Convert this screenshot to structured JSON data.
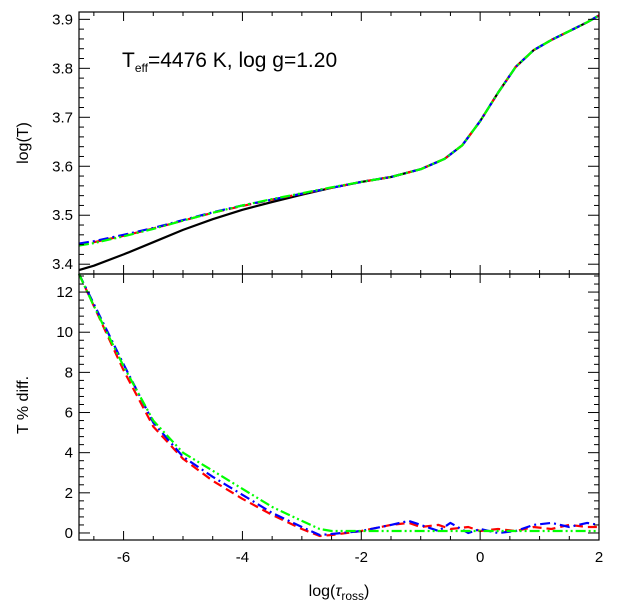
{
  "chart_data": [
    {
      "type": "line",
      "panel": "top",
      "annotation": {
        "prefix": "T",
        "sub": "eff",
        "text": "=4476 K, log g=1.20"
      },
      "ylabel": "log(T)",
      "xlabel": "",
      "xlim": [
        -6.75,
        2.0
      ],
      "ylim": [
        3.38,
        3.915
      ],
      "xticks": [
        -6,
        -4,
        -2,
        0,
        2
      ],
      "yticks": [
        3.4,
        3.5,
        3.6,
        3.7,
        3.8,
        3.9
      ],
      "ytick_labels": [
        "3.4",
        "3.5",
        "3.6",
        "3.7",
        "3.8",
        "3.9"
      ],
      "series": [
        {
          "color": "#000000",
          "style": "solid",
          "x": [
            -6.75,
            -6.5,
            -6.0,
            -5.5,
            -5.0,
            -4.5,
            -4.0,
            -3.5,
            -3.0,
            -2.5,
            -2.0,
            -1.5,
            -1.0,
            -0.6,
            -0.3,
            0.0,
            0.3,
            0.6,
            0.9,
            1.2,
            1.5,
            1.8,
            2.0
          ],
          "y": [
            3.388,
            3.397,
            3.42,
            3.445,
            3.47,
            3.492,
            3.511,
            3.527,
            3.542,
            3.556,
            3.568,
            3.578,
            3.594,
            3.615,
            3.643,
            3.692,
            3.75,
            3.803,
            3.837,
            3.858,
            3.876,
            3.894,
            3.908
          ]
        },
        {
          "color": "#ff0000",
          "style": "dashed",
          "x": [
            -6.75,
            -6.5,
            -6.0,
            -5.5,
            -5.0,
            -4.5,
            -4.0,
            -3.5,
            -3.0,
            -2.5,
            -2.0,
            -1.5,
            -1.0,
            -0.6,
            -0.3,
            0.0,
            0.3,
            0.6,
            0.9,
            1.2,
            1.5,
            1.8,
            2.0
          ],
          "y": [
            3.44,
            3.445,
            3.458,
            3.473,
            3.489,
            3.505,
            3.519,
            3.532,
            3.544,
            3.556,
            3.568,
            3.578,
            3.594,
            3.615,
            3.643,
            3.692,
            3.75,
            3.803,
            3.837,
            3.858,
            3.876,
            3.894,
            3.908
          ]
        },
        {
          "color": "#0000ff",
          "style": "dashdot",
          "x": [
            -6.75,
            -6.5,
            -6.0,
            -5.5,
            -5.0,
            -4.5,
            -4.0,
            -3.5,
            -3.0,
            -2.5,
            -2.0,
            -1.5,
            -1.0,
            -0.6,
            -0.3,
            0.0,
            0.3,
            0.6,
            0.9,
            1.2,
            1.5,
            1.8,
            2.0
          ],
          "y": [
            3.442,
            3.447,
            3.46,
            3.474,
            3.49,
            3.506,
            3.52,
            3.532,
            3.544,
            3.556,
            3.568,
            3.578,
            3.594,
            3.615,
            3.643,
            3.692,
            3.75,
            3.803,
            3.837,
            3.858,
            3.876,
            3.894,
            3.908
          ]
        },
        {
          "color": "#00ff00",
          "style": "dashdotdot",
          "x": [
            -6.75,
            -6.5,
            -6.0,
            -5.5,
            -5.0,
            -4.5,
            -4.0,
            -3.5,
            -3.0,
            -2.5,
            -2.0,
            -1.5,
            -1.0,
            -0.6,
            -0.3,
            0.0,
            0.3,
            0.6,
            0.9,
            1.2,
            1.5,
            1.8,
            2.0
          ],
          "y": [
            3.438,
            3.443,
            3.457,
            3.472,
            3.489,
            3.505,
            3.52,
            3.533,
            3.545,
            3.557,
            3.568,
            3.578,
            3.594,
            3.615,
            3.643,
            3.692,
            3.75,
            3.803,
            3.837,
            3.858,
            3.876,
            3.894,
            3.908
          ]
        }
      ]
    },
    {
      "type": "line",
      "panel": "bottom",
      "ylabel": "T % diff.",
      "xlabel_main": "log(",
      "xlabel_symbol": "τ",
      "xlabel_sub": "ross",
      "xlabel_close": ")",
      "xlim": [
        -6.75,
        2.0
      ],
      "ylim": [
        -0.35,
        12.9
      ],
      "xticks": [
        -6,
        -4,
        -2,
        0,
        2
      ],
      "xtick_labels": [
        "-6",
        "-4",
        "-2",
        "0",
        "2"
      ],
      "yticks": [
        0,
        2,
        4,
        6,
        8,
        10,
        12
      ],
      "ytick_labels": [
        "0",
        "2",
        "4",
        "6",
        "8",
        "10",
        "12"
      ],
      "series": [
        {
          "color": "#ff0000",
          "style": "dashed",
          "x": [
            -6.75,
            -6.5,
            -6.0,
            -5.5,
            -5.0,
            -4.5,
            -4.0,
            -3.5,
            -3.0,
            -2.7,
            -2.5,
            -2.0,
            -1.5,
            -1.2,
            -1.0,
            -0.7,
            -0.5,
            -0.2,
            0.0,
            0.3,
            0.6,
            0.9,
            1.2,
            1.5,
            1.8,
            2.0
          ],
          "y": [
            12.9,
            11.3,
            8.1,
            5.3,
            3.7,
            2.6,
            1.7,
            0.9,
            0.2,
            -0.15,
            -0.1,
            0.1,
            0.4,
            0.5,
            0.3,
            0.4,
            0.2,
            0.3,
            0.1,
            0.2,
            0.1,
            0.3,
            0.2,
            0.4,
            0.3,
            0.3
          ]
        },
        {
          "color": "#0000ff",
          "style": "dashdot",
          "x": [
            -6.75,
            -6.5,
            -6.0,
            -5.5,
            -5.0,
            -4.5,
            -4.0,
            -3.5,
            -3.0,
            -2.7,
            -2.5,
            -2.0,
            -1.5,
            -1.2,
            -1.0,
            -0.7,
            -0.5,
            -0.2,
            0.0,
            0.3,
            0.6,
            0.9,
            1.2,
            1.5,
            1.8,
            2.0
          ],
          "y": [
            12.9,
            11.4,
            8.4,
            5.5,
            3.8,
            2.8,
            1.9,
            1.0,
            0.3,
            -0.1,
            -0.05,
            0.1,
            0.4,
            0.6,
            0.4,
            0.1,
            0.5,
            0.0,
            0.2,
            0.0,
            0.1,
            0.4,
            0.5,
            0.3,
            0.5,
            0.4
          ]
        },
        {
          "color": "#00ff00",
          "style": "dashdotdot",
          "x": [
            -6.75,
            -6.5,
            -6.0,
            -5.5,
            -5.0,
            -4.5,
            -4.0,
            -3.5,
            -3.0,
            -2.7,
            -2.5,
            -2.0,
            -1.5,
            -1.0,
            -0.5,
            0.0,
            0.5,
            1.0,
            1.5,
            2.0
          ],
          "y": [
            12.9,
            11.3,
            8.3,
            5.6,
            4.0,
            3.1,
            2.2,
            1.3,
            0.6,
            0.2,
            0.1,
            0.1,
            0.1,
            0.1,
            0.1,
            0.1,
            0.1,
            0.1,
            0.1,
            0.1
          ]
        }
      ]
    }
  ]
}
